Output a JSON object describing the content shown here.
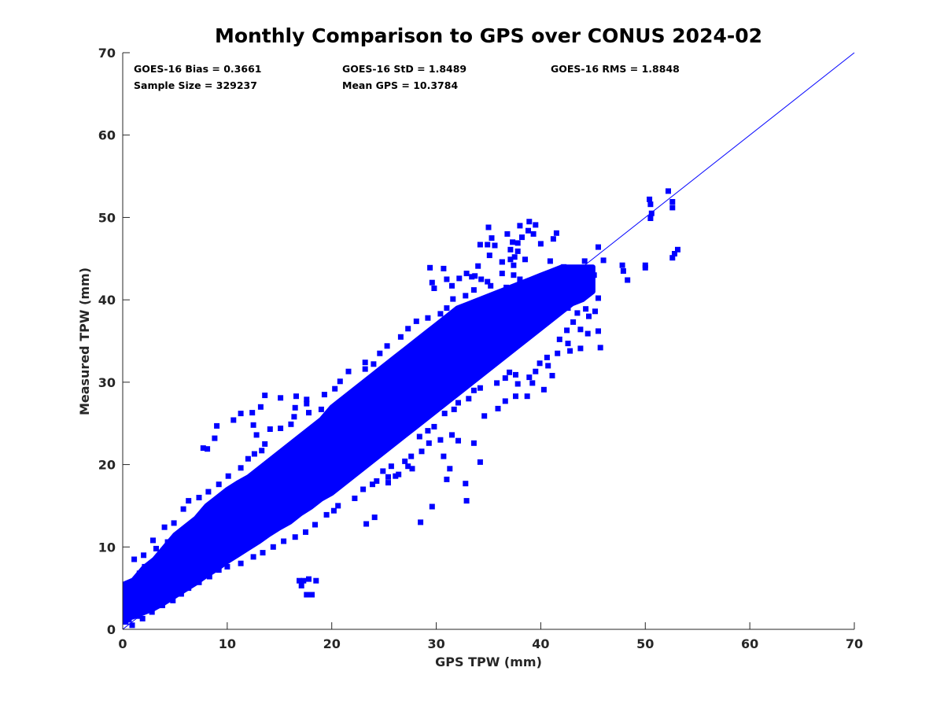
{
  "chart_data": {
    "type": "scatter",
    "title": "Monthly Comparison to GPS over CONUS 2024-02",
    "xlabel": "GPS TPW (mm)",
    "ylabel": "Measured TPW (mm)",
    "xlim": [
      0,
      70
    ],
    "ylim": [
      0,
      70
    ],
    "xticks": [
      0,
      10,
      20,
      30,
      40,
      50,
      60,
      70
    ],
    "yticks": [
      0,
      10,
      20,
      30,
      40,
      50,
      60,
      70
    ],
    "grid": false,
    "marker_color": "#0000ff",
    "reference_line": {
      "type": "one-to-one",
      "x": [
        0,
        70
      ],
      "y": [
        0,
        70
      ],
      "color": "#0000ff"
    },
    "stats": [
      {
        "label": "GOES-16 Bias = 0.3661"
      },
      {
        "label": "GOES-16 StD = 1.8489"
      },
      {
        "label": "GOES-16 RMS = 1.8848"
      },
      {
        "label": "Sample Size = 329237"
      },
      {
        "label": "Mean GPS = 10.3784"
      }
    ],
    "dense_band": [
      [
        0.1,
        1.2,
        5.5
      ],
      [
        1,
        1.5,
        6
      ],
      [
        2,
        2,
        7.5
      ],
      [
        3,
        2.5,
        8.5
      ],
      [
        4,
        3.2,
        10
      ],
      [
        5,
        4,
        11.5
      ],
      [
        6,
        4.8,
        12.5
      ],
      [
        7,
        5.6,
        13.5
      ],
      [
        8,
        6.5,
        15
      ],
      [
        9,
        7.3,
        16
      ],
      [
        10,
        8.2,
        17
      ],
      [
        11,
        9,
        17.8
      ],
      [
        12,
        9.8,
        18.5
      ],
      [
        13,
        10.6,
        19.5
      ],
      [
        14,
        11.5,
        20.5
      ],
      [
        15,
        12.3,
        21.5
      ],
      [
        16,
        13,
        22.5
      ],
      [
        17,
        14,
        23.5
      ],
      [
        18,
        14.8,
        24.5
      ],
      [
        19,
        15.8,
        25.5
      ],
      [
        20,
        16.5,
        27
      ],
      [
        21,
        17.5,
        28
      ],
      [
        22,
        18.5,
        29
      ],
      [
        23,
        19.5,
        30
      ],
      [
        24,
        20.5,
        31
      ],
      [
        25,
        21.5,
        32
      ],
      [
        26,
        22.5,
        33
      ],
      [
        27,
        23.5,
        34
      ],
      [
        28,
        24.5,
        35
      ],
      [
        29,
        25.5,
        36
      ],
      [
        30,
        26.5,
        37
      ],
      [
        31,
        27.5,
        38
      ],
      [
        32,
        28.5,
        39
      ],
      [
        33,
        29.5,
        39.5
      ],
      [
        34,
        30.5,
        40
      ],
      [
        35,
        31.5,
        40.5
      ],
      [
        36,
        32.5,
        41
      ],
      [
        37,
        33.5,
        41.5
      ],
      [
        38,
        34.5,
        42
      ],
      [
        39,
        35.5,
        42.5
      ],
      [
        40,
        36.5,
        43
      ],
      [
        41,
        37.5,
        43.5
      ],
      [
        42,
        38.5,
        44
      ],
      [
        43,
        39.5,
        44
      ],
      [
        44,
        40,
        44
      ],
      [
        45,
        41,
        44
      ]
    ],
    "points": [
      [
        52.2,
        53.2
      ],
      [
        50.4,
        52.2
      ],
      [
        50.5,
        51.6
      ],
      [
        52.6,
        51.9
      ],
      [
        52.6,
        51.2
      ],
      [
        50.6,
        50.5
      ],
      [
        50.5,
        49.9
      ],
      [
        53.1,
        46.1
      ],
      [
        52.8,
        45.6
      ],
      [
        52.6,
        45.1
      ],
      [
        50.0,
        44.2
      ],
      [
        50.0,
        43.9
      ],
      [
        48.3,
        42.4
      ],
      [
        47.8,
        44.2
      ],
      [
        47.9,
        43.5
      ],
      [
        46.0,
        44.8
      ],
      [
        45.5,
        46.4
      ],
      [
        44.2,
        44.7
      ],
      [
        45.5,
        40.2
      ],
      [
        45.2,
        38.6
      ],
      [
        45.5,
        36.2
      ],
      [
        45.7,
        34.2
      ],
      [
        44.5,
        35.9
      ],
      [
        43.8,
        34.1
      ],
      [
        42.8,
        33.8
      ],
      [
        41.1,
        30.8
      ],
      [
        40.3,
        29.1
      ],
      [
        39.2,
        29.9
      ],
      [
        37.8,
        29.8
      ],
      [
        38.7,
        28.3
      ],
      [
        38.9,
        49.5
      ],
      [
        39.5,
        49.1
      ],
      [
        38.8,
        48.4
      ],
      [
        38.2,
        47.6
      ],
      [
        37.8,
        46.9
      ],
      [
        39.3,
        48.0
      ],
      [
        41.5,
        48.1
      ],
      [
        41.2,
        47.4
      ],
      [
        40.0,
        46.8
      ],
      [
        38.0,
        49.0
      ],
      [
        36.8,
        48.0
      ],
      [
        37.3,
        47.0
      ],
      [
        37.8,
        45.9
      ],
      [
        38.5,
        44.9
      ],
      [
        37.5,
        45.2
      ],
      [
        37.1,
        44.9
      ],
      [
        37.4,
        44.2
      ],
      [
        36.3,
        44.6
      ],
      [
        35.0,
        48.8
      ],
      [
        35.3,
        47.5
      ],
      [
        35.6,
        46.6
      ],
      [
        34.9,
        46.7
      ],
      [
        34.2,
        46.7
      ],
      [
        37.1,
        46.1
      ],
      [
        35.1,
        45.4
      ],
      [
        36.3,
        44.6
      ],
      [
        34.0,
        44.1
      ],
      [
        36.3,
        43.2
      ],
      [
        37.4,
        43.0
      ],
      [
        38.0,
        42.5
      ],
      [
        39.1,
        42.2
      ],
      [
        39.4,
        41.9
      ],
      [
        40.9,
        44.7
      ],
      [
        42.2,
        44.0
      ],
      [
        43.5,
        43.9
      ],
      [
        43.3,
        42.9
      ],
      [
        44.3,
        42.2
      ],
      [
        44.9,
        42.8
      ],
      [
        44.6,
        43.4
      ],
      [
        45.1,
        43.0
      ],
      [
        42.9,
        41.6
      ],
      [
        42.7,
        40.7
      ],
      [
        43.3,
        40.3
      ],
      [
        42.6,
        39.0
      ],
      [
        43.5,
        38.4
      ],
      [
        44.3,
        38.9
      ],
      [
        44.6,
        38.0
      ],
      [
        43.1,
        37.3
      ],
      [
        43.8,
        36.4
      ],
      [
        42.5,
        36.3
      ],
      [
        41.8,
        35.2
      ],
      [
        42.6,
        34.7
      ],
      [
        41.6,
        33.5
      ],
      [
        40.6,
        33.0
      ],
      [
        39.9,
        32.3
      ],
      [
        40.7,
        32.0
      ],
      [
        39.5,
        31.3
      ],
      [
        38.9,
        30.6
      ],
      [
        37.6,
        30.9
      ],
      [
        37.0,
        31.2
      ],
      [
        36.6,
        30.5
      ],
      [
        35.8,
        29.9
      ],
      [
        34.2,
        29.3
      ],
      [
        33.6,
        29.0
      ],
      [
        33.1,
        28.0
      ],
      [
        32.1,
        27.5
      ],
      [
        31.7,
        26.7
      ],
      [
        30.8,
        26.2
      ],
      [
        29.8,
        24.6
      ],
      [
        29.2,
        24.1
      ],
      [
        28.4,
        23.4
      ],
      [
        29.3,
        22.6
      ],
      [
        31.5,
        23.6
      ],
      [
        30.4,
        23.0
      ],
      [
        30.7,
        21.0
      ],
      [
        28.6,
        21.6
      ],
      [
        27.6,
        21.0
      ],
      [
        27.0,
        20.4
      ],
      [
        27.3,
        19.8
      ],
      [
        25.7,
        19.8
      ],
      [
        24.9,
        19.2
      ],
      [
        27.7,
        19.5
      ],
      [
        26.4,
        18.8
      ],
      [
        25.4,
        18.5
      ],
      [
        24.3,
        18.0
      ],
      [
        23.9,
        17.6
      ],
      [
        23.0,
        17.0
      ],
      [
        25.4,
        17.8
      ],
      [
        31.3,
        19.5
      ],
      [
        34.2,
        20.3
      ],
      [
        33.6,
        22.6
      ],
      [
        32.1,
        22.9
      ],
      [
        34.6,
        25.9
      ],
      [
        35.9,
        26.8
      ],
      [
        36.6,
        27.7
      ],
      [
        37.6,
        28.3
      ],
      [
        32.8,
        17.7
      ],
      [
        32.9,
        15.6
      ],
      [
        28.5,
        13.0
      ],
      [
        22.2,
        15.9
      ],
      [
        20.6,
        15.0
      ],
      [
        20.2,
        14.4
      ],
      [
        19.5,
        13.9
      ],
      [
        18.4,
        12.7
      ],
      [
        17.5,
        11.8
      ],
      [
        16.5,
        11.2
      ],
      [
        15.4,
        10.7
      ],
      [
        14.4,
        10.0
      ],
      [
        13.4,
        9.3
      ],
      [
        12.5,
        8.8
      ],
      [
        11.3,
        8.0
      ],
      [
        10.0,
        7.6
      ],
      [
        9.2,
        7.2
      ],
      [
        8.3,
        6.4
      ],
      [
        7.3,
        5.7
      ],
      [
        6.3,
        5.0
      ],
      [
        5.6,
        4.3
      ],
      [
        4.8,
        3.5
      ],
      [
        3.8,
        2.9
      ],
      [
        2.8,
        2.1
      ],
      [
        1.9,
        1.3
      ],
      [
        0.9,
        0.5
      ],
      [
        0.3,
        0.9
      ],
      [
        0.3,
        2.6
      ],
      [
        0.2,
        3.6
      ],
      [
        0.7,
        4.4
      ],
      [
        1.0,
        5.7
      ],
      [
        1.6,
        6.8
      ],
      [
        2.1,
        7.6
      ],
      [
        3.2,
        9.8
      ],
      [
        4.3,
        10.6
      ],
      [
        5.8,
        12.0
      ],
      [
        6.9,
        12.8
      ],
      [
        8.0,
        13.8
      ],
      [
        9.0,
        15.2
      ],
      [
        10.3,
        16.4
      ],
      [
        11.2,
        17.3
      ],
      [
        12.2,
        17.8
      ],
      [
        13.6,
        18.8
      ],
      [
        14.8,
        19.9
      ],
      [
        15.6,
        20.7
      ],
      [
        16.9,
        21.6
      ],
      [
        17.9,
        22.5
      ],
      [
        18.6,
        23.4
      ],
      [
        19.0,
        26.7
      ],
      [
        17.6,
        27.4
      ],
      [
        17.8,
        26.3
      ],
      [
        16.5,
        26.9
      ],
      [
        16.4,
        25.8
      ],
      [
        16.1,
        24.9
      ],
      [
        15.1,
        24.4
      ],
      [
        14.1,
        24.3
      ],
      [
        13.6,
        22.5
      ],
      [
        13.3,
        21.7
      ],
      [
        12.6,
        21.3
      ],
      [
        12.0,
        20.7
      ],
      [
        11.3,
        19.6
      ],
      [
        10.1,
        18.6
      ],
      [
        9.2,
        17.6
      ],
      [
        8.2,
        16.7
      ],
      [
        7.3,
        16.0
      ],
      [
        6.3,
        15.6
      ],
      [
        5.8,
        14.6
      ],
      [
        4.9,
        12.9
      ],
      [
        4.0,
        12.4
      ],
      [
        2.9,
        10.8
      ],
      [
        2.0,
        9.0
      ],
      [
        1.1,
        8.5
      ],
      [
        12.8,
        23.6
      ],
      [
        12.5,
        24.8
      ],
      [
        12.4,
        26.3
      ],
      [
        11.3,
        26.2
      ],
      [
        10.6,
        25.4
      ],
      [
        9.0,
        24.7
      ],
      [
        8.8,
        23.2
      ],
      [
        8.1,
        21.9
      ],
      [
        7.7,
        22.0
      ],
      [
        13.2,
        27.0
      ],
      [
        13.6,
        28.4
      ],
      [
        15.1,
        28.1
      ],
      [
        16.6,
        28.3
      ],
      [
        17.6,
        27.9
      ],
      [
        19.3,
        28.5
      ],
      [
        20.3,
        29.2
      ],
      [
        20.8,
        30.1
      ],
      [
        21.6,
        31.3
      ],
      [
        23.2,
        31.6
      ],
      [
        23.2,
        32.4
      ],
      [
        24.0,
        32.2
      ],
      [
        24.6,
        33.5
      ],
      [
        25.3,
        34.4
      ],
      [
        26.6,
        35.5
      ],
      [
        27.3,
        36.5
      ],
      [
        28.1,
        37.4
      ],
      [
        29.2,
        37.8
      ],
      [
        30.4,
        38.3
      ],
      [
        31.0,
        39.0
      ],
      [
        31.6,
        40.1
      ],
      [
        32.8,
        40.5
      ],
      [
        33.6,
        41.2
      ],
      [
        29.4,
        43.9
      ],
      [
        29.6,
        42.1
      ],
      [
        29.8,
        41.4
      ],
      [
        30.7,
        43.8
      ],
      [
        31.0,
        42.5
      ],
      [
        31.5,
        41.7
      ],
      [
        32.2,
        42.6
      ],
      [
        32.9,
        43.2
      ],
      [
        33.4,
        42.8
      ],
      [
        33.7,
        42.9
      ],
      [
        34.3,
        42.5
      ],
      [
        34.9,
        42.2
      ],
      [
        35.2,
        41.7
      ],
      [
        36.7,
        41.5
      ],
      [
        37.1,
        41.1
      ],
      [
        37.8,
        40.8
      ],
      [
        19.9,
        19.8
      ],
      [
        20.2,
        20.3
      ],
      [
        18.2,
        18.2
      ],
      [
        17.2,
        16.9
      ],
      [
        16.4,
        16.3
      ],
      [
        15.6,
        15.3
      ],
      [
        14.5,
        14.3
      ],
      [
        13.6,
        13.3
      ],
      [
        12.5,
        12.6
      ],
      [
        11.4,
        11.5
      ],
      [
        10.3,
        10.3
      ],
      [
        9.4,
        9.4
      ],
      [
        8.3,
        8.4
      ],
      [
        7.4,
        7.4
      ],
      [
        6.5,
        6.2
      ],
      [
        5.4,
        5.3
      ],
      [
        4.3,
        4.2
      ],
      [
        3.3,
        3.5
      ],
      [
        2.2,
        2.6
      ],
      [
        1.5,
        1.6
      ],
      [
        0.6,
        1.2
      ],
      [
        17.3,
        5.9
      ],
      [
        17.8,
        6.1
      ],
      [
        18.5,
        5.9
      ],
      [
        17.6,
        4.2
      ],
      [
        18.1,
        4.2
      ],
      [
        16.9,
        5.9
      ],
      [
        17.1,
        5.3
      ],
      [
        24.1,
        13.6
      ],
      [
        23.3,
        12.8
      ],
      [
        26.1,
        18.6
      ],
      [
        29.6,
        14.9
      ],
      [
        31.0,
        18.2
      ]
    ]
  }
}
